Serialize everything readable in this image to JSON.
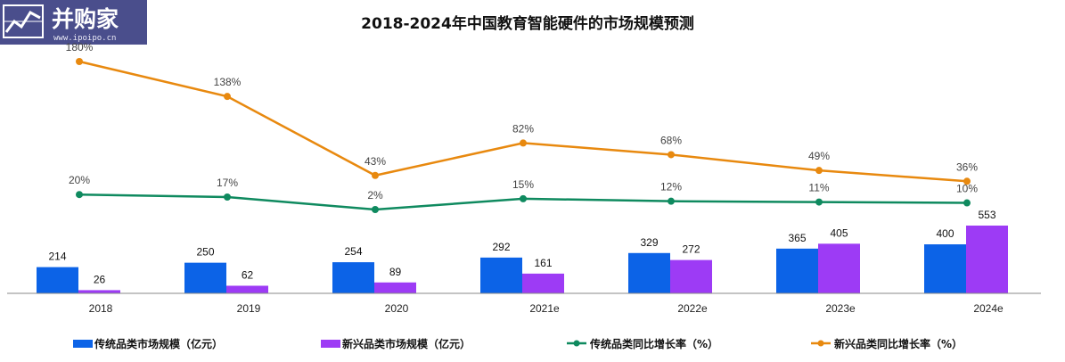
{
  "watermark": {
    "brand": "并购家",
    "site": "www.ipoipo.cn"
  },
  "chart_data": {
    "type": "bar",
    "title": "2018-2024年中国教育智能硬件的市场规模预测",
    "categories": [
      "2018",
      "2019",
      "2020",
      "2021e",
      "2022e",
      "2023e",
      "2024e"
    ],
    "bar_series": [
      {
        "name": "传统品类市场规模（亿元）",
        "color": "#0c63e7",
        "values": [
          214,
          250,
          254,
          292,
          329,
          365,
          400
        ]
      },
      {
        "name": "新兴品类市场规模（亿元）",
        "color": "#9d3bf5",
        "values": [
          26,
          62,
          89,
          161,
          272,
          405,
          553
        ]
      }
    ],
    "line_series": [
      {
        "name": "传统品类同比增长率（%）",
        "color": "#0f8a5f",
        "values": [
          20,
          17,
          2,
          15,
          12,
          11,
          10
        ],
        "labels": [
          "20%",
          "17%",
          "2%",
          "15%",
          "12%",
          "11%",
          "10%"
        ]
      },
      {
        "name": "新兴品类同比增长率（%）",
        "color": "#e8890f",
        "values": [
          180,
          138,
          43,
          82,
          68,
          49,
          36
        ],
        "labels": [
          "180%",
          "138%",
          "43%",
          "82%",
          "68%",
          "49%",
          "36%"
        ]
      }
    ],
    "xlabel": "",
    "ylabel": "",
    "legend": "bottom",
    "grid": false
  }
}
